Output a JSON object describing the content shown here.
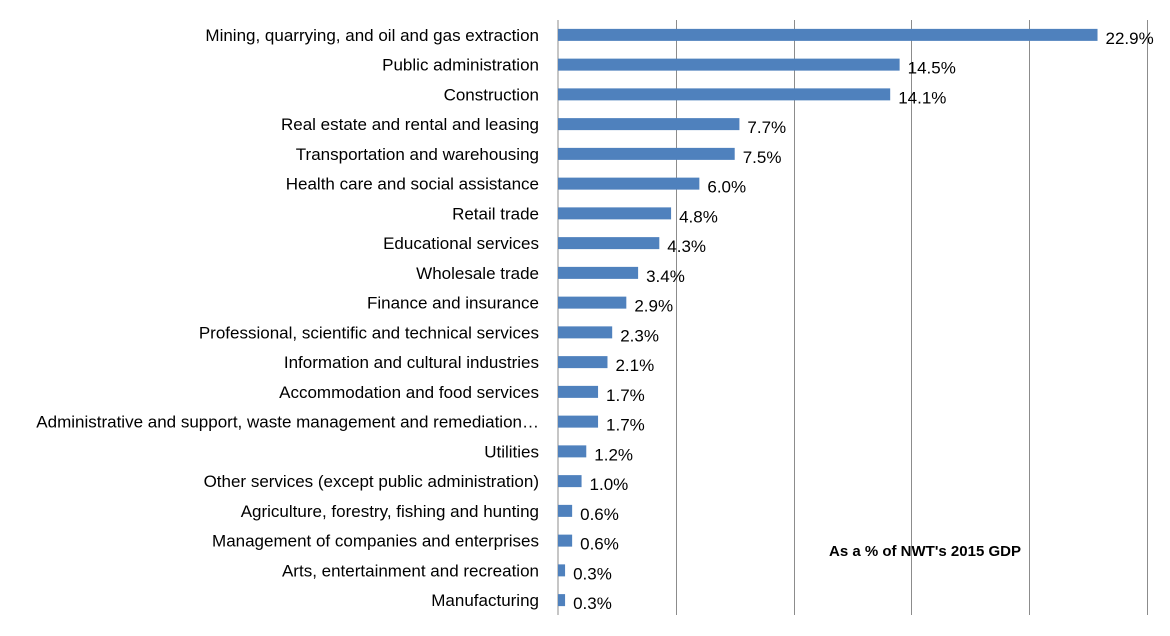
{
  "chart_data": {
    "type": "bar",
    "orientation": "horizontal",
    "title": "",
    "xlabel": "",
    "ylabel": "",
    "annotation": "As a % of NWT's 2015 GDP",
    "xlim": [
      0,
      25
    ],
    "grid": true,
    "bar_color": "#4f81bd",
    "categories": [
      "Mining, quarrying, and oil and gas extraction",
      "Public administration",
      "Construction",
      "Real estate and rental and leasing",
      "Transportation and warehousing",
      "Health care and social assistance",
      "Retail trade",
      "Educational services",
      "Wholesale trade",
      "Finance and insurance",
      "Professional, scientific and technical services",
      "Information and cultural industries",
      "Accommodation and food services",
      "Administrative and support, waste management and remediation…",
      "Utilities",
      "Other services (except public administration)",
      "Agriculture, forestry, fishing and hunting",
      "Management of companies and enterprises",
      "Arts, entertainment and recreation",
      "Manufacturing"
    ],
    "values": [
      22.9,
      14.5,
      14.1,
      7.7,
      7.5,
      6.0,
      4.8,
      4.3,
      3.4,
      2.9,
      2.3,
      2.1,
      1.7,
      1.7,
      1.2,
      1.0,
      0.6,
      0.6,
      0.3,
      0.3
    ],
    "value_labels": [
      "22.9%",
      "14.5%",
      "14.1%",
      "7.7%",
      "7.5%",
      "6.0%",
      "4.8%",
      "4.3%",
      "3.4%",
      "2.9%",
      "2.3%",
      "2.1%",
      "1.7%",
      "1.7%",
      "1.2%",
      "1.0%",
      "0.6%",
      "0.6%",
      "0.3%",
      "0.3%"
    ]
  }
}
